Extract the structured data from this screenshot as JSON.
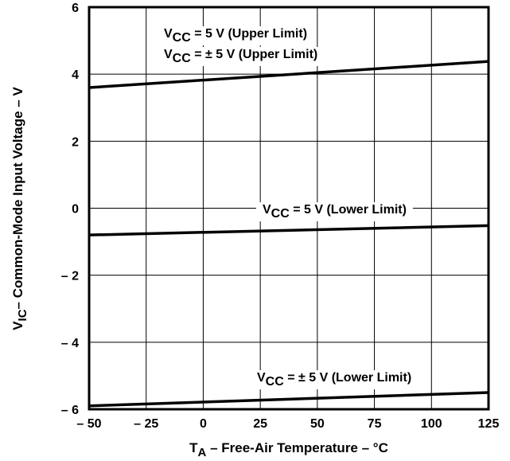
{
  "chart_data": {
    "type": "line",
    "xlabel": {
      "main": "T",
      "sub": "A",
      "rest": " – Free-Air Temperature – °C"
    },
    "ylabel": {
      "main": "V",
      "sub": "IC",
      "rest": "– Common-Mode Input Voltage – V"
    },
    "xlim": [
      -50,
      125
    ],
    "ylim": [
      -6,
      6
    ],
    "x_ticks": [
      -50,
      -25,
      0,
      25,
      50,
      75,
      100,
      125
    ],
    "x_tick_labels": [
      "– 50",
      "– 25",
      "0",
      "25",
      "50",
      "75",
      "100",
      "125"
    ],
    "y_ticks": [
      -6,
      -4,
      -2,
      0,
      2,
      4,
      6
    ],
    "y_tick_labels": [
      "– 6",
      "– 4",
      "– 2",
      "0",
      "2",
      "4",
      "6"
    ],
    "grid": true,
    "series": [
      {
        "x": [
          -50,
          125
        ],
        "y": [
          3.6,
          4.38
        ]
      },
      {
        "x": [
          -50,
          125
        ],
        "y": [
          -0.8,
          -0.52
        ]
      },
      {
        "x": [
          -50,
          125
        ],
        "y": [
          -5.9,
          -5.5
        ]
      }
    ],
    "annotations": [
      {
        "pre": "V",
        "sub": "CC",
        "post": " = 5 V (Upper Limit)"
      },
      {
        "pre": "V",
        "sub": "CC",
        "post": " = ± 5 V (Upper Limit)"
      },
      {
        "pre": "V",
        "sub": "CC",
        "post": " = 5 V (Lower Limit)"
      },
      {
        "pre": "V",
        "sub": "CC",
        "post": " = ± 5 V (Lower Limit)"
      }
    ]
  }
}
